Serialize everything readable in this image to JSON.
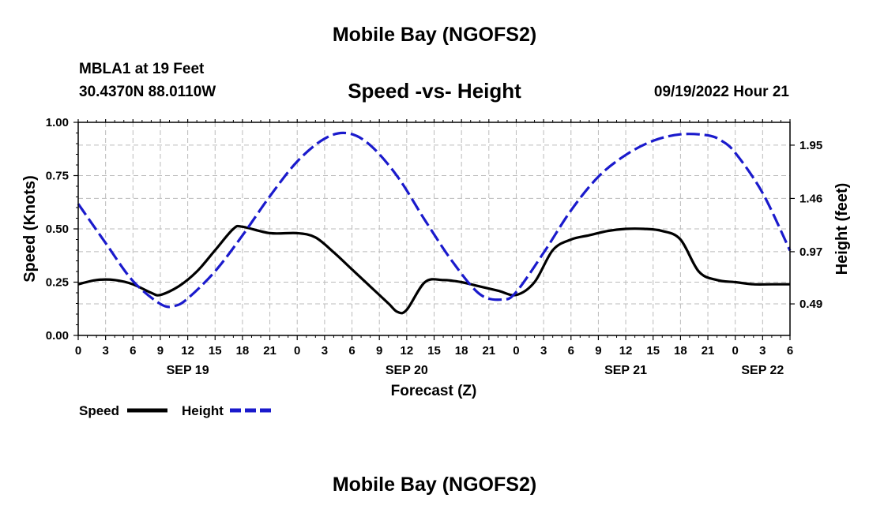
{
  "header": {
    "title": "Mobile Bay (NGOFS2)",
    "station": "MBLA1 at 19 Feet",
    "coords": "30.4370N  88.0110W",
    "subtitle": "Speed -vs- Height",
    "datetime": "09/19/2022 Hour 21"
  },
  "footer": {
    "title": "Mobile Bay (NGOFS2)"
  },
  "colors": {
    "speed": "#000000",
    "height": "#1a1acc",
    "grid": "#bbbbbb"
  },
  "chart_data": {
    "type": "line",
    "title": "Speed -vs- Height",
    "xlabel": "Forecast (Z)",
    "ylabel": "Speed (Knots)",
    "y2label": "Height (feet)",
    "xlim": [
      0,
      78
    ],
    "ylim": [
      0,
      1
    ],
    "y2lim": [
      0.2,
      2.16
    ],
    "x_ticks": [
      0,
      3,
      6,
      9,
      12,
      15,
      18,
      21,
      24,
      27,
      30,
      33,
      36,
      39,
      42,
      45,
      48,
      51,
      54,
      57,
      60,
      63,
      66,
      69,
      72,
      75,
      78
    ],
    "x_tick_labels": [
      "0",
      "3",
      "6",
      "9",
      "12",
      "15",
      "18",
      "21",
      "0",
      "3",
      "6",
      "9",
      "12",
      "15",
      "18",
      "21",
      "0",
      "3",
      "6",
      "9",
      "12",
      "15",
      "18",
      "21",
      "0",
      "3",
      "6"
    ],
    "date_labels": [
      {
        "x": 12,
        "label": "SEP 19"
      },
      {
        "x": 36,
        "label": "SEP 20"
      },
      {
        "x": 60,
        "label": "SEP 21"
      },
      {
        "x": 75,
        "label": "SEP 22"
      }
    ],
    "y_ticks": [
      0.0,
      0.25,
      0.5,
      0.75,
      1.0
    ],
    "y_tick_labels": [
      "0.00",
      "0.25",
      "0.50",
      "0.75",
      "1.00"
    ],
    "y2_ticks": [
      0.49,
      0.97,
      1.46,
      1.95
    ],
    "y2_tick_labels": [
      "0.49",
      "0.97",
      "1.46",
      "1.95"
    ],
    "grid": true,
    "legend": [
      {
        "label": "Speed",
        "style": "solid"
      },
      {
        "label": "Height",
        "style": "dashed"
      }
    ],
    "series": [
      {
        "name": "Speed",
        "axis": "left",
        "x": [
          0,
          2,
          4,
          6,
          8,
          9,
          11,
          13,
          15,
          17,
          18,
          21,
          24,
          26,
          28,
          30,
          32,
          34,
          35,
          36,
          38,
          40,
          42,
          44,
          46,
          48,
          50,
          52,
          54,
          56,
          58,
          60,
          62,
          64,
          66,
          68,
          70,
          72,
          74,
          76,
          78
        ],
        "values": [
          0.24,
          0.26,
          0.26,
          0.24,
          0.2,
          0.19,
          0.23,
          0.3,
          0.4,
          0.5,
          0.51,
          0.48,
          0.48,
          0.46,
          0.39,
          0.31,
          0.23,
          0.15,
          0.11,
          0.12,
          0.25,
          0.26,
          0.25,
          0.23,
          0.21,
          0.19,
          0.25,
          0.4,
          0.45,
          0.47,
          0.49,
          0.5,
          0.5,
          0.49,
          0.45,
          0.3,
          0.26,
          0.25,
          0.24,
          0.24,
          0.24
        ]
      },
      {
        "name": "Height",
        "axis": "right",
        "x": [
          0,
          3,
          6,
          9,
          10.5,
          12,
          15,
          18,
          21,
          24,
          27,
          29.5,
          32,
          35,
          38,
          41,
          44,
          46.5,
          48,
          51,
          54,
          57,
          60,
          63,
          66,
          69,
          70.5,
          72,
          75,
          78
        ],
        "values": [
          1.41,
          1.05,
          0.7,
          0.49,
          0.47,
          0.54,
          0.79,
          1.12,
          1.48,
          1.8,
          2.01,
          2.06,
          1.95,
          1.66,
          1.26,
          0.88,
          0.58,
          0.53,
          0.6,
          0.96,
          1.35,
          1.66,
          1.86,
          1.99,
          2.05,
          2.04,
          1.99,
          1.88,
          1.51,
          0.98
        ]
      }
    ]
  }
}
